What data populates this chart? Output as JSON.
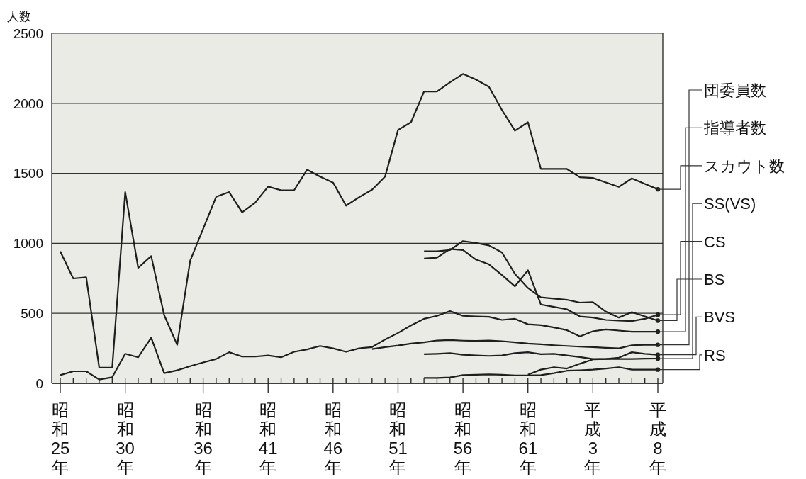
{
  "chart_data": {
    "type": "line",
    "ylabel": "人数",
    "categories": [
      "昭和25年",
      null,
      null,
      null,
      null,
      "昭和30年",
      null,
      null,
      null,
      null,
      null,
      "昭和36年",
      null,
      null,
      null,
      null,
      "昭和41年",
      null,
      null,
      null,
      null,
      "昭和46年",
      null,
      null,
      null,
      null,
      "昭和51年",
      null,
      null,
      null,
      null,
      "昭和56年",
      null,
      null,
      null,
      null,
      "昭和61年",
      null,
      null,
      null,
      null,
      "平成3年",
      null,
      null,
      null,
      null,
      "平成8年"
    ],
    "ylim": [
      0,
      2500
    ],
    "yticks": [
      0,
      500,
      1000,
      1500,
      2000,
      2500
    ],
    "grid": "y",
    "series": [
      {
        "name": "団委員数",
        "color": "#1e1e1e",
        "values": [
          null,
          null,
          null,
          null,
          null,
          null,
          null,
          null,
          null,
          null,
          null,
          null,
          null,
          null,
          null,
          null,
          null,
          null,
          null,
          null,
          null,
          null,
          null,
          null,
          245,
          259,
          270,
          284,
          293,
          306,
          309,
          305,
          303,
          306,
          301,
          293,
          284,
          279,
          272,
          267,
          262,
          259,
          254,
          250,
          272,
          275,
          275
        ]
      },
      {
        "name": "指導者数",
        "color": "#1e1e1e",
        "values": [
          59,
          86,
          86,
          27,
          44,
          211,
          186,
          326,
          73,
          93,
          123,
          149,
          174,
          222,
          191,
          191,
          199,
          186,
          225,
          242,
          267,
          250,
          225,
          250,
          259,
          313,
          360,
          414,
          461,
          482,
          516,
          482,
          478,
          475,
          453,
          461,
          422,
          416,
          399,
          380,
          335,
          372,
          385,
          377,
          369,
          369,
          369
        ]
      },
      {
        "name": "スカウト数",
        "color": "#1e1e1e",
        "values": [
          943,
          749,
          757,
          112,
          112,
          1366,
          825,
          909,
          487,
          275,
          876,
          1104,
          1332,
          1366,
          1222,
          1290,
          1405,
          1379,
          1379,
          1526,
          1476,
          1434,
          1269,
          1329,
          1383,
          1476,
          1810,
          1865,
          2084,
          2084,
          2150,
          2210,
          2170,
          2118,
          1952,
          1805,
          1865,
          1531,
          1531,
          1531,
          1472,
          1467,
          1435,
          1403,
          1464,
          1425,
          1386
        ]
      },
      {
        "name": "SS(VS)",
        "color": "#1e1e1e",
        "values": [
          null,
          null,
          null,
          null,
          null,
          null,
          null,
          null,
          null,
          null,
          null,
          null,
          null,
          null,
          null,
          null,
          null,
          null,
          null,
          null,
          null,
          null,
          null,
          null,
          null,
          null,
          null,
          null,
          208,
          211,
          216,
          204,
          199,
          196,
          199,
          216,
          222,
          208,
          211,
          199,
          188,
          174,
          174,
          174,
          174,
          176,
          177
        ]
      },
      {
        "name": "CS",
        "color": "#1e1e1e",
        "values": [
          null,
          null,
          null,
          null,
          null,
          null,
          null,
          null,
          null,
          null,
          null,
          null,
          null,
          null,
          null,
          null,
          null,
          null,
          null,
          null,
          null,
          null,
          null,
          null,
          null,
          null,
          null,
          null,
          892,
          898,
          960,
          952,
          884,
          850,
          774,
          693,
          808,
          563,
          546,
          529,
          478,
          470,
          453,
          448,
          445,
          461,
          490
        ]
      },
      {
        "name": "BS",
        "color": "#1e1e1e",
        "values": [
          null,
          null,
          null,
          null,
          null,
          null,
          null,
          null,
          null,
          null,
          null,
          null,
          null,
          null,
          null,
          null,
          null,
          null,
          null,
          null,
          null,
          null,
          null,
          null,
          null,
          null,
          null,
          null,
          943,
          943,
          952,
          1016,
          1003,
          985,
          935,
          782,
          681,
          614,
          605,
          597,
          577,
          580,
          512,
          470,
          509,
          478,
          448
        ]
      },
      {
        "name": "BVS",
        "color": "#1e1e1e",
        "values": [
          null,
          null,
          null,
          null,
          null,
          null,
          null,
          null,
          null,
          null,
          null,
          null,
          null,
          null,
          null,
          null,
          null,
          null,
          null,
          null,
          null,
          null,
          null,
          null,
          null,
          null,
          null,
          null,
          null,
          null,
          null,
          null,
          null,
          null,
          null,
          null,
          62,
          98,
          115,
          106,
          140,
          171,
          174,
          183,
          222,
          211,
          204
        ]
      },
      {
        "name": "RS",
        "color": "#1e1e1e",
        "values": [
          null,
          null,
          null,
          null,
          null,
          null,
          null,
          null,
          null,
          null,
          null,
          null,
          null,
          null,
          null,
          null,
          null,
          null,
          null,
          null,
          null,
          null,
          null,
          null,
          null,
          null,
          null,
          null,
          39,
          39,
          42,
          59,
          61,
          64,
          61,
          56,
          56,
          59,
          73,
          90,
          93,
          98,
          106,
          115,
          98,
          98,
          98
        ]
      }
    ]
  }
}
